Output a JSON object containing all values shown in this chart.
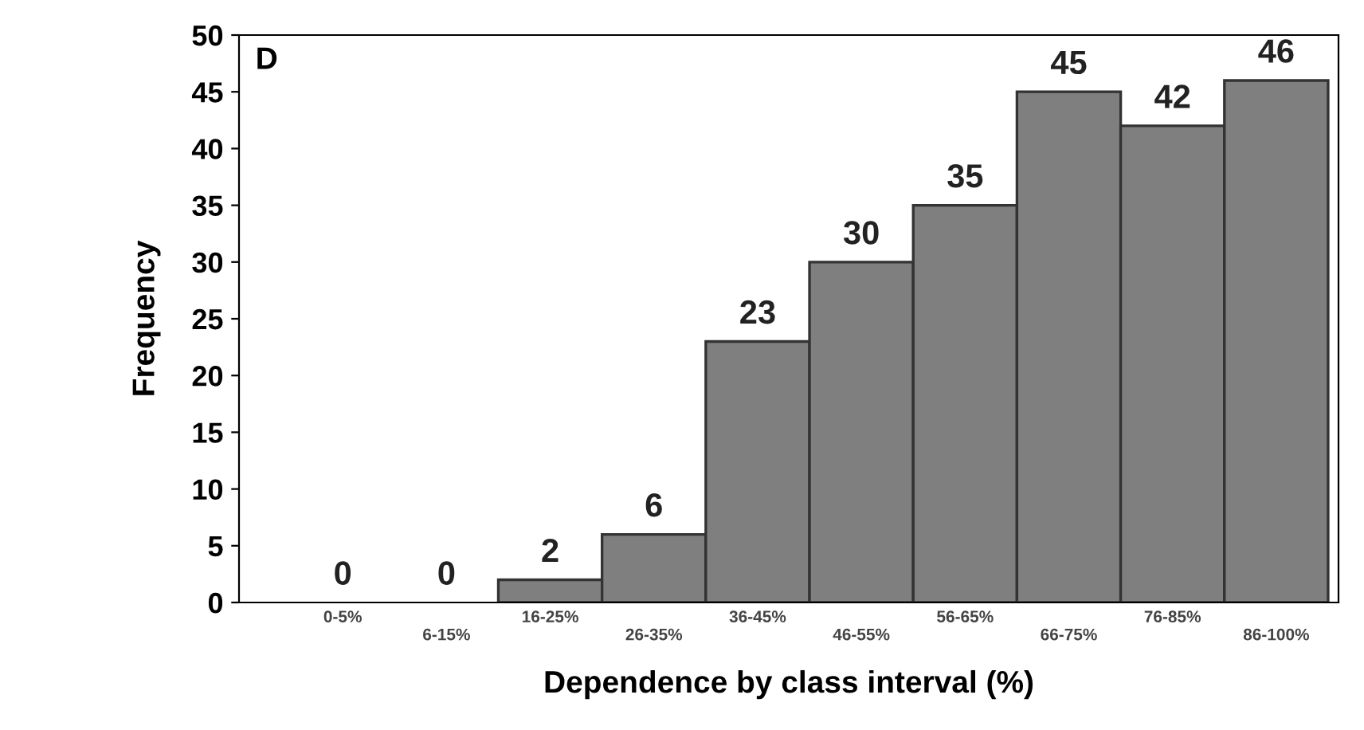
{
  "chart_data": {
    "type": "bar",
    "xlabel": "Dependence by class interval (%)",
    "ylabel": "Frequency",
    "categories": [
      "0-5%",
      "6-15%",
      "16-25%",
      "26-35%",
      "36-45%",
      "46-55%",
      "56-65%",
      "66-75%",
      "76-85%",
      "86-100%"
    ],
    "values": [
      0,
      0,
      2,
      6,
      23,
      30,
      35,
      45,
      42,
      46
    ],
    "color": "#7f7f7f",
    "ylim": [
      0,
      50
    ],
    "yticks": [
      0,
      5,
      10,
      15,
      20,
      25,
      30,
      35,
      40,
      45,
      50
    ],
    "data_labels": true,
    "grid": false,
    "legend": false,
    "annotations": [
      "D"
    ]
  }
}
